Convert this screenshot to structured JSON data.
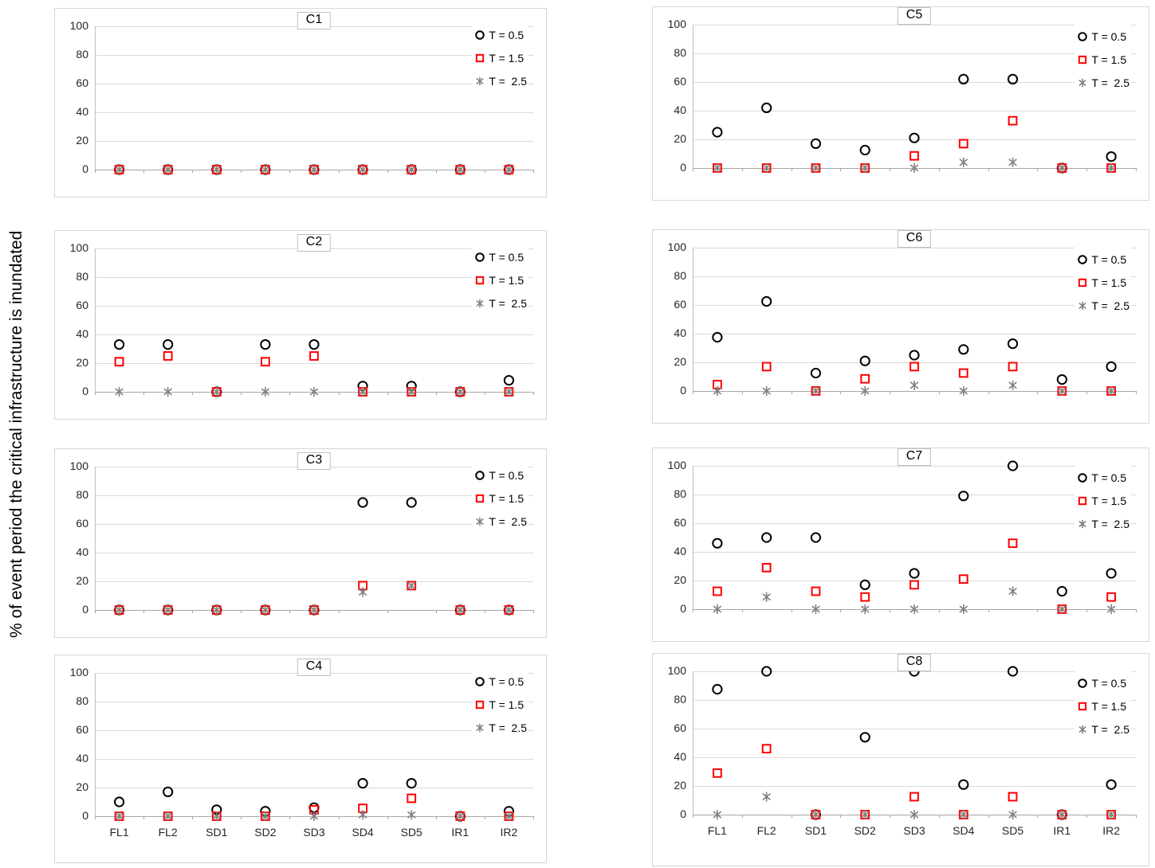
{
  "ylabel": "% of event period the critical infrastructure is inundated",
  "categories": [
    "FL1",
    "FL2",
    "SD1",
    "SD2",
    "SD3",
    "SD4",
    "SD5",
    "IR1",
    "IR2"
  ],
  "yticks": [
    0,
    20,
    40,
    60,
    80,
    100
  ],
  "legend": [
    {
      "label": "T = 0.5",
      "marker": "circle-icon",
      "color": "#000000"
    },
    {
      "label": "T = 1.5",
      "marker": "square-icon",
      "color": "#ff0000"
    },
    {
      "label": "T =  2.5",
      "marker": "asterisk-icon",
      "color": "#808080"
    }
  ],
  "chart_data": [
    {
      "type": "scatter",
      "title": "C1",
      "ylim": [
        0,
        100
      ],
      "grid": true,
      "legend_position": "top-right",
      "series": [
        {
          "name": "T = 0.5",
          "values": [
            0,
            0,
            0,
            0,
            0,
            0,
            0,
            0,
            0
          ]
        },
        {
          "name": "T = 1.5",
          "values": [
            0,
            0,
            0,
            0,
            0,
            0,
            0,
            0,
            0
          ]
        },
        {
          "name": "T = 2.5",
          "values": [
            0,
            0,
            0,
            0,
            0,
            0,
            0,
            0,
            0
          ]
        }
      ]
    },
    {
      "type": "scatter",
      "title": "C2",
      "ylim": [
        0,
        100
      ],
      "grid": true,
      "legend_position": "top-right",
      "series": [
        {
          "name": "T = 0.5",
          "values": [
            33,
            33,
            0,
            33,
            33,
            4,
            4,
            0,
            8
          ]
        },
        {
          "name": "T = 1.5",
          "values": [
            21,
            25,
            0,
            21,
            25,
            0,
            0,
            0,
            0
          ]
        },
        {
          "name": "T = 2.5",
          "values": [
            0,
            0,
            0,
            0,
            0,
            0,
            0,
            0,
            0
          ]
        }
      ]
    },
    {
      "type": "scatter",
      "title": "C3",
      "ylim": [
        0,
        100
      ],
      "grid": true,
      "legend_position": "top-right",
      "series": [
        {
          "name": "T = 0.5",
          "values": [
            0,
            0,
            0,
            0,
            0,
            75,
            75,
            0,
            0
          ]
        },
        {
          "name": "T = 1.5",
          "values": [
            0,
            0,
            0,
            0,
            0,
            17,
            17,
            0,
            0
          ]
        },
        {
          "name": "T = 2.5",
          "values": [
            0,
            0,
            0,
            0,
            0,
            12.5,
            17,
            0,
            0
          ]
        }
      ]
    },
    {
      "type": "scatter",
      "title": "C4",
      "ylim": [
        0,
        100
      ],
      "grid": true,
      "legend_position": "top-right",
      "series": [
        {
          "name": "T = 0.5",
          "values": [
            10,
            17,
            4.5,
            3.5,
            6,
            23,
            23,
            0,
            3.5
          ]
        },
        {
          "name": "T = 1.5",
          "values": [
            0,
            0,
            0,
            0,
            4.5,
            5.5,
            12.5,
            0,
            0
          ]
        },
        {
          "name": "T = 2.5",
          "values": [
            0,
            0,
            0,
            0,
            0,
            1,
            1,
            0,
            0
          ]
        }
      ]
    },
    {
      "type": "scatter",
      "title": "C5",
      "ylim": [
        0,
        100
      ],
      "grid": true,
      "legend_position": "top-right",
      "series": [
        {
          "name": "T = 0.5",
          "values": [
            25,
            42,
            17,
            12.5,
            21,
            62,
            62,
            0,
            8
          ]
        },
        {
          "name": "T = 1.5",
          "values": [
            0,
            0,
            0,
            0,
            8.5,
            17,
            33,
            0,
            0
          ]
        },
        {
          "name": "T = 2.5",
          "values": [
            0,
            0,
            0,
            0,
            0,
            4,
            4,
            0,
            0
          ]
        }
      ]
    },
    {
      "type": "scatter",
      "title": "C6",
      "ylim": [
        0,
        100
      ],
      "grid": true,
      "legend_position": "top-right",
      "series": [
        {
          "name": "T = 0.5",
          "values": [
            37.5,
            62.5,
            12.5,
            21,
            25,
            29,
            33,
            8,
            17
          ]
        },
        {
          "name": "T = 1.5",
          "values": [
            4.5,
            17,
            0,
            8.5,
            17,
            12.5,
            17,
            0,
            0
          ]
        },
        {
          "name": "T = 2.5",
          "values": [
            0,
            0,
            0,
            0,
            4,
            0,
            4,
            0,
            0
          ]
        }
      ]
    },
    {
      "type": "scatter",
      "title": "C7",
      "ylim": [
        0,
        100
      ],
      "grid": true,
      "legend_position": "top-right",
      "series": [
        {
          "name": "T = 0.5",
          "values": [
            46,
            50,
            50,
            17,
            25,
            79,
            100,
            12.5,
            25
          ]
        },
        {
          "name": "T = 1.5",
          "values": [
            12.5,
            29,
            12.5,
            8.5,
            17,
            21,
            46,
            0,
            8.5
          ]
        },
        {
          "name": "T = 2.5",
          "values": [
            0,
            8.5,
            0,
            0,
            0,
            0,
            12.5,
            0,
            0
          ]
        }
      ]
    },
    {
      "type": "scatter",
      "title": "C8",
      "ylim": [
        0,
        100
      ],
      "grid": true,
      "legend_position": "top-right",
      "series": [
        {
          "name": "T = 0.5",
          "values": [
            87.5,
            100,
            0,
            54,
            100,
            21,
            100,
            0,
            21
          ]
        },
        {
          "name": "T = 1.5",
          "values": [
            29,
            46,
            0,
            0,
            12.5,
            0,
            12.5,
            0,
            0
          ]
        },
        {
          "name": "T = 2.5",
          "values": [
            0,
            12.5,
            0,
            0,
            0,
            0,
            0,
            0,
            0
          ]
        }
      ]
    }
  ]
}
